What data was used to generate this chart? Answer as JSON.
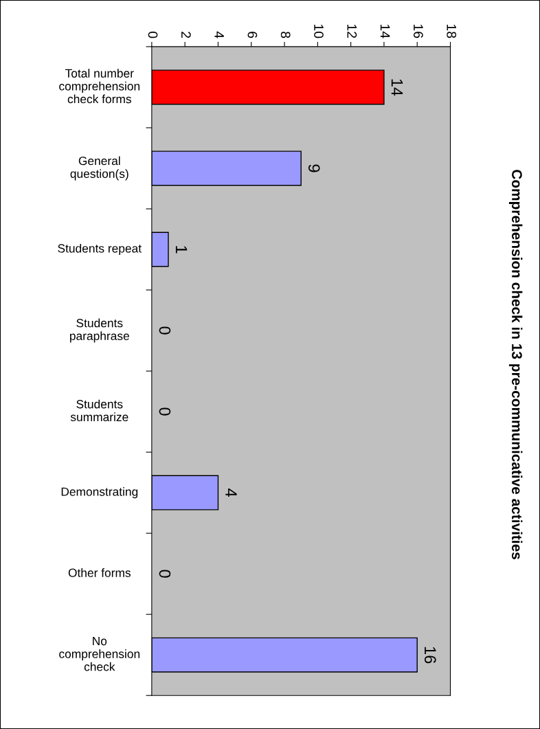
{
  "chart_data": {
    "type": "bar",
    "orientation": "horizontal",
    "title": "Comprehension check in 13 pre-communicative activities",
    "categories": [
      "Total number\ncomprehension\ncheck forms",
      "General\nquestion(s)",
      "Students repeat",
      "Students\nparaphrase",
      "Students\nsummarize",
      "Demonstrating",
      "Other forms",
      "No\ncomprehension\ncheck"
    ],
    "values": [
      14,
      9,
      1,
      0,
      0,
      4,
      0,
      16
    ],
    "colors": [
      "#ff0000",
      "#9999ff",
      "#9999ff",
      "#9999ff",
      "#9999ff",
      "#9999ff",
      "#9999ff",
      "#9999ff"
    ],
    "xlim": [
      0,
      18
    ],
    "xticks": [
      0,
      2,
      4,
      6,
      8,
      10,
      12,
      14,
      16,
      18
    ],
    "data_labels": true,
    "grid": false,
    "legend": false
  }
}
